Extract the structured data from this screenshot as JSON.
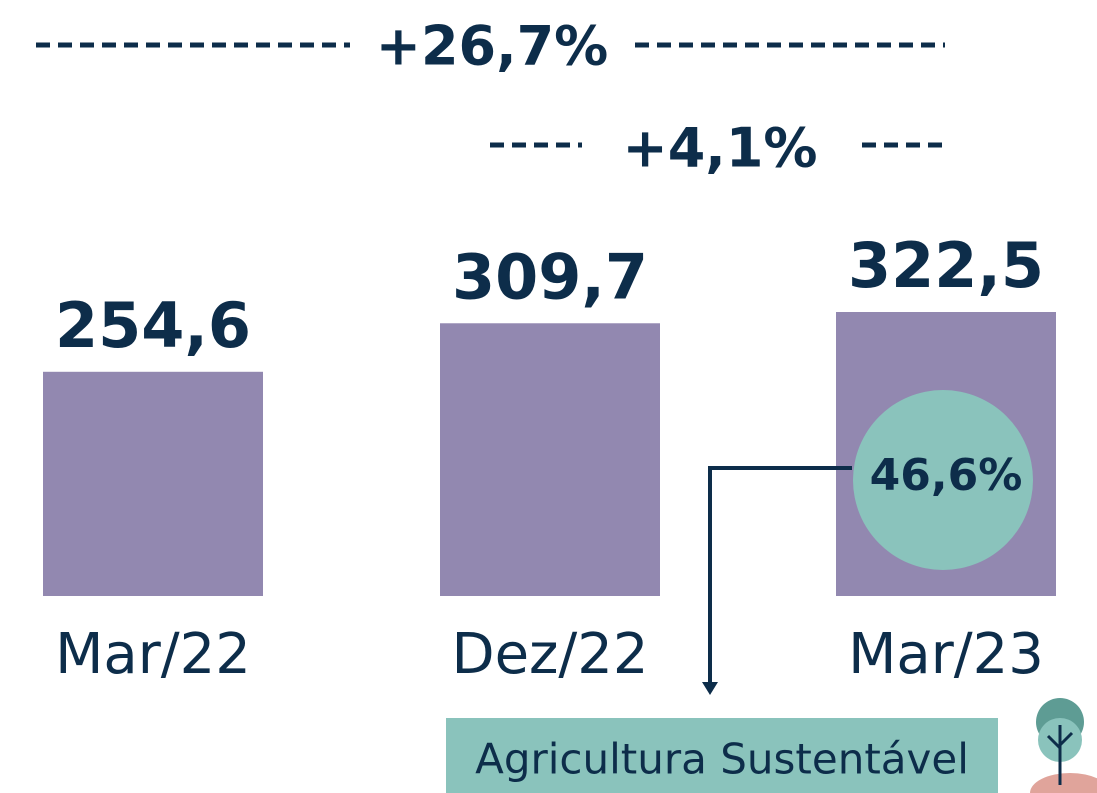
{
  "chart_data": {
    "type": "bar",
    "categories": [
      "Mar/22",
      "Dez/22",
      "Mar/23"
    ],
    "values": [
      254.6,
      309.7,
      322.5
    ],
    "value_labels": [
      "254,6",
      "309,7",
      "322,5"
    ],
    "color": "#9288b0",
    "annotations": [
      "+26,7%",
      "+4,1%",
      "46,6%",
      "Agricultura Sustentável"
    ]
  }
}
